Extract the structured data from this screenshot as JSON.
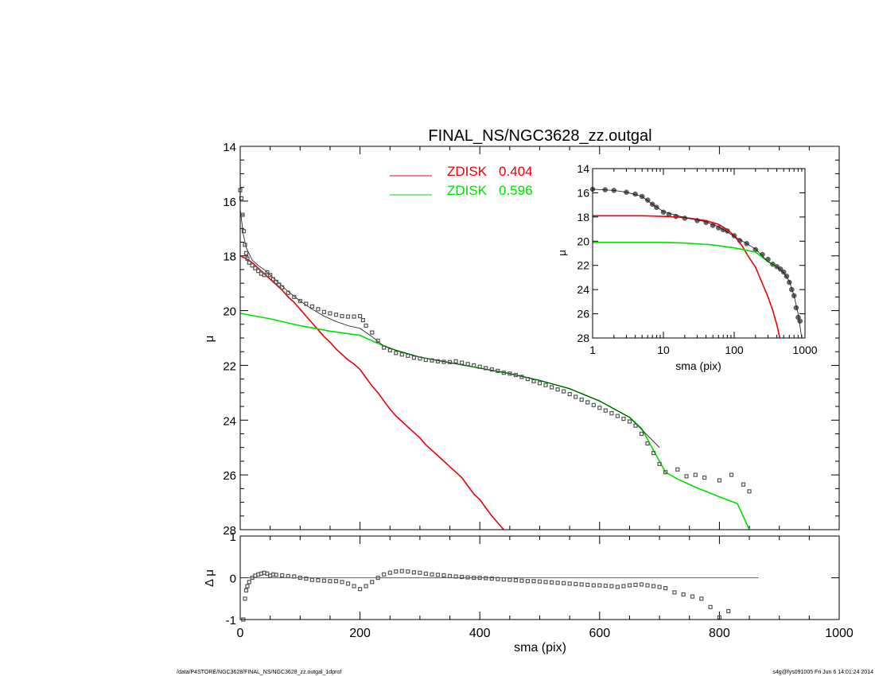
{
  "chart_data": [
    {
      "type": "line",
      "panel": "main",
      "title": "FINAL_NS/NGC3628_zz.outgal",
      "xlabel": "",
      "ylabel": "μ",
      "xlim": [
        0,
        1000
      ],
      "ylim": [
        28,
        14
      ],
      "y_inverted": true,
      "yticks": [
        14,
        16,
        18,
        20,
        22,
        24,
        26,
        28
      ],
      "legend": [
        {
          "label": "ZDISK",
          "value": "0.404",
          "color": "#e8000b"
        },
        {
          "label": "ZDISK",
          "value": "0.596",
          "color": "#00dd00"
        }
      ],
      "series": [
        {
          "name": "observed",
          "style": "squares",
          "color": "#555555",
          "x": [
            0,
            2,
            4,
            6,
            8,
            10,
            12,
            15,
            20,
            25,
            30,
            35,
            40,
            45,
            50,
            55,
            60,
            65,
            70,
            80,
            90,
            100,
            110,
            120,
            130,
            140,
            150,
            160,
            170,
            180,
            190,
            200,
            205,
            210,
            220,
            230,
            240,
            250,
            260,
            270,
            280,
            290,
            300,
            310,
            320,
            330,
            340,
            350,
            360,
            370,
            380,
            390,
            400,
            410,
            420,
            430,
            440,
            450,
            460,
            470,
            480,
            490,
            500,
            510,
            520,
            530,
            540,
            550,
            560,
            570,
            580,
            590,
            600,
            610,
            620,
            630,
            640,
            650,
            660,
            670,
            680,
            690,
            700,
            710,
            730,
            745,
            760,
            775,
            800,
            820,
            840,
            850
          ],
          "y": [
            15.6,
            15.9,
            16.5,
            17.1,
            17.6,
            17.9,
            18.1,
            18.25,
            18.35,
            18.45,
            18.55,
            18.65,
            18.7,
            18.6,
            18.7,
            18.85,
            18.95,
            19.05,
            19.15,
            19.35,
            19.5,
            19.65,
            19.75,
            19.85,
            19.95,
            20.05,
            20.1,
            20.15,
            20.2,
            20.22,
            20.22,
            20.2,
            20.35,
            20.55,
            20.8,
            21.1,
            21.35,
            21.45,
            21.55,
            21.6,
            21.65,
            21.72,
            21.75,
            21.8,
            21.82,
            21.85,
            21.87,
            21.88,
            21.85,
            21.9,
            21.95,
            22.0,
            22.05,
            22.1,
            22.15,
            22.2,
            22.27,
            22.3,
            22.35,
            22.42,
            22.5,
            22.58,
            22.65,
            22.72,
            22.8,
            22.88,
            22.95,
            23.05,
            23.15,
            23.25,
            23.35,
            23.45,
            23.55,
            23.65,
            23.75,
            23.85,
            23.95,
            24.05,
            24.2,
            24.5,
            24.85,
            25.2,
            25.6,
            25.9,
            25.8,
            26.05,
            26.0,
            26.1,
            26.2,
            26.0,
            26.35,
            26.6
          ]
        },
        {
          "name": "ZDISK 0.404",
          "style": "line",
          "color": "#e8000b",
          "x": [
            0,
            10,
            20,
            30,
            40,
            50,
            60,
            70,
            80,
            90,
            100,
            110,
            120,
            130,
            140,
            150,
            160,
            170,
            180,
            190,
            200,
            210,
            220,
            230,
            240,
            250,
            260,
            270,
            280,
            290,
            300,
            310,
            320,
            330,
            340,
            350,
            360,
            370,
            380,
            390,
            400,
            410,
            420,
            430,
            440
          ],
          "y": [
            18.0,
            18.1,
            18.25,
            18.45,
            18.65,
            18.85,
            19.05,
            19.25,
            19.5,
            19.7,
            19.95,
            20.2,
            20.45,
            20.7,
            20.95,
            21.15,
            21.4,
            21.6,
            21.8,
            21.95,
            22.15,
            22.45,
            22.75,
            23.0,
            23.3,
            23.6,
            23.85,
            24.05,
            24.25,
            24.45,
            24.65,
            24.9,
            25.1,
            25.3,
            25.5,
            25.7,
            25.9,
            26.1,
            26.4,
            26.7,
            26.9,
            27.2,
            27.5,
            27.75,
            28.0
          ]
        },
        {
          "name": "ZDISK 0.596",
          "style": "line",
          "color": "#00dd00",
          "x": [
            0,
            50,
            100,
            150,
            200,
            230,
            260,
            300,
            350,
            400,
            450,
            500,
            550,
            600,
            650,
            670,
            690,
            710,
            730,
            760,
            800,
            830,
            850
          ],
          "y": [
            20.1,
            20.3,
            20.55,
            20.75,
            20.9,
            21.2,
            21.45,
            21.7,
            21.9,
            22.1,
            22.3,
            22.55,
            22.85,
            23.3,
            23.9,
            24.3,
            25.1,
            25.9,
            26.15,
            26.45,
            26.8,
            27.05,
            28.0
          ]
        },
        {
          "name": "model sum",
          "style": "line",
          "color": "#111111",
          "x": [
            0,
            5,
            10,
            20,
            30,
            40,
            50,
            60,
            80,
            100,
            120,
            140,
            160,
            180,
            200,
            220,
            240,
            260,
            300,
            350,
            400,
            450,
            500,
            550,
            600,
            650,
            700
          ],
          "y": [
            16.3,
            17.2,
            17.7,
            18.15,
            18.35,
            18.5,
            18.7,
            18.9,
            19.3,
            19.65,
            19.95,
            20.2,
            20.4,
            20.55,
            20.65,
            20.95,
            21.3,
            21.45,
            21.7,
            21.9,
            22.1,
            22.3,
            22.55,
            22.85,
            23.3,
            23.9,
            25.0
          ]
        }
      ]
    },
    {
      "type": "line",
      "panel": "inset",
      "xlabel": "sma (pix)",
      "ylabel": "μ",
      "xscale": "log",
      "xlim": [
        1,
        1000
      ],
      "ylim": [
        28,
        14
      ],
      "y_inverted": true,
      "xticks": [
        "1",
        "10",
        "100",
        "1000"
      ],
      "yticks": [
        14,
        16,
        18,
        20,
        22,
        24,
        26,
        28
      ],
      "series": [
        {
          "name": "observed",
          "style": "markers",
          "color": "#666666",
          "x": [
            1,
            1.5,
            2,
            3,
            4,
            5,
            6,
            7,
            8,
            10,
            12,
            15,
            20,
            30,
            40,
            50,
            60,
            70,
            80,
            100,
            120,
            150,
            200,
            250,
            300,
            350,
            400,
            450,
            500,
            550,
            600,
            650,
            700,
            750,
            800,
            850
          ],
          "y": [
            15.7,
            15.75,
            15.8,
            15.95,
            16.1,
            16.3,
            16.6,
            16.95,
            17.2,
            17.6,
            17.8,
            17.95,
            18.1,
            18.3,
            18.45,
            18.7,
            18.9,
            19.05,
            19.15,
            19.55,
            19.95,
            20.2,
            20.7,
            21.1,
            21.5,
            21.9,
            22.1,
            22.3,
            22.55,
            22.9,
            23.4,
            24.0,
            24.5,
            25.5,
            26.3,
            26.6
          ]
        },
        {
          "name": "model sum",
          "style": "line",
          "color": "#111111",
          "x": [
            1,
            2,
            3,
            5,
            7,
            10,
            20,
            40,
            60,
            100,
            150,
            200,
            300,
            400,
            500,
            600,
            700,
            800,
            900
          ],
          "y": [
            15.7,
            15.8,
            15.95,
            16.3,
            16.95,
            17.55,
            18.05,
            18.4,
            18.8,
            19.6,
            20.2,
            20.65,
            21.7,
            22.1,
            22.6,
            23.3,
            24.5,
            26.0,
            28.0
          ]
        },
        {
          "name": "ZDISK 0.404",
          "style": "line",
          "color": "#e8000b",
          "x": [
            1,
            5,
            10,
            20,
            40,
            60,
            80,
            100,
            130,
            160,
            200,
            250,
            300,
            350,
            400,
            440
          ],
          "y": [
            17.9,
            17.9,
            17.95,
            18.05,
            18.3,
            18.6,
            19.05,
            19.55,
            20.4,
            21.3,
            22.15,
            23.5,
            24.6,
            25.7,
            26.9,
            28.0
          ]
        },
        {
          "name": "ZDISK 0.596",
          "style": "line",
          "color": "#00dd00",
          "x": [
            1,
            5,
            10,
            20,
            50,
            100,
            150,
            200,
            300,
            400
          ],
          "y": [
            20.1,
            20.1,
            20.1,
            20.15,
            20.3,
            20.55,
            20.75,
            20.9,
            21.7,
            22.1
          ]
        }
      ]
    },
    {
      "type": "scatter",
      "panel": "residual",
      "xlabel": "sma (pix)",
      "ylabel": "Δ μ",
      "xlim": [
        0,
        1000
      ],
      "ylim": [
        -1,
        1
      ],
      "xticks": [
        0,
        200,
        400,
        600,
        800,
        1000
      ],
      "yticks": [
        -1,
        0,
        1
      ],
      "zero_line_xmax": 865,
      "series": [
        {
          "name": "residual",
          "style": "squares",
          "color": "#555555",
          "x": [
            5,
            8,
            10,
            12,
            15,
            20,
            25,
            30,
            35,
            40,
            45,
            50,
            55,
            60,
            70,
            80,
            90,
            100,
            110,
            120,
            130,
            140,
            150,
            160,
            170,
            180,
            190,
            200,
            210,
            220,
            230,
            240,
            250,
            260,
            270,
            280,
            290,
            300,
            310,
            320,
            330,
            340,
            350,
            360,
            370,
            380,
            390,
            400,
            410,
            420,
            430,
            440,
            450,
            460,
            470,
            480,
            490,
            500,
            510,
            520,
            530,
            540,
            550,
            560,
            570,
            580,
            590,
            600,
            610,
            620,
            630,
            640,
            650,
            660,
            670,
            680,
            690,
            700,
            710,
            725,
            740,
            755,
            770,
            785,
            800,
            815
          ],
          "y": [
            -1.0,
            -0.5,
            -0.3,
            -0.2,
            -0.1,
            0.0,
            0.05,
            0.08,
            0.1,
            0.12,
            0.1,
            0.05,
            0.08,
            0.07,
            0.06,
            0.04,
            0.03,
            0.0,
            -0.02,
            -0.05,
            -0.06,
            -0.07,
            -0.08,
            -0.08,
            -0.1,
            -0.14,
            -0.2,
            -0.27,
            -0.2,
            -0.1,
            0.0,
            0.08,
            0.12,
            0.15,
            0.16,
            0.15,
            0.13,
            0.12,
            0.1,
            0.08,
            0.07,
            0.06,
            0.04,
            0.03,
            0.02,
            0.01,
            0.0,
            0.0,
            -0.01,
            -0.02,
            -0.03,
            -0.04,
            -0.05,
            -0.06,
            -0.07,
            -0.08,
            -0.08,
            -0.09,
            -0.1,
            -0.11,
            -0.12,
            -0.13,
            -0.14,
            -0.15,
            -0.16,
            -0.17,
            -0.18,
            -0.18,
            -0.19,
            -0.2,
            -0.22,
            -0.2,
            -0.18,
            -0.17,
            -0.16,
            -0.18,
            -0.2,
            -0.22,
            -0.25,
            -0.35,
            -0.4,
            -0.45,
            -0.5,
            -0.7,
            -0.95,
            -0.8
          ]
        }
      ]
    }
  ],
  "footer": {
    "left": "/data/P4STORE/NGC3628/FINAL_NS/NGC3628_zz.outgal_1dprof",
    "right": "s4g@fys091005  Fri Jun  6 14:01:24 2014"
  }
}
